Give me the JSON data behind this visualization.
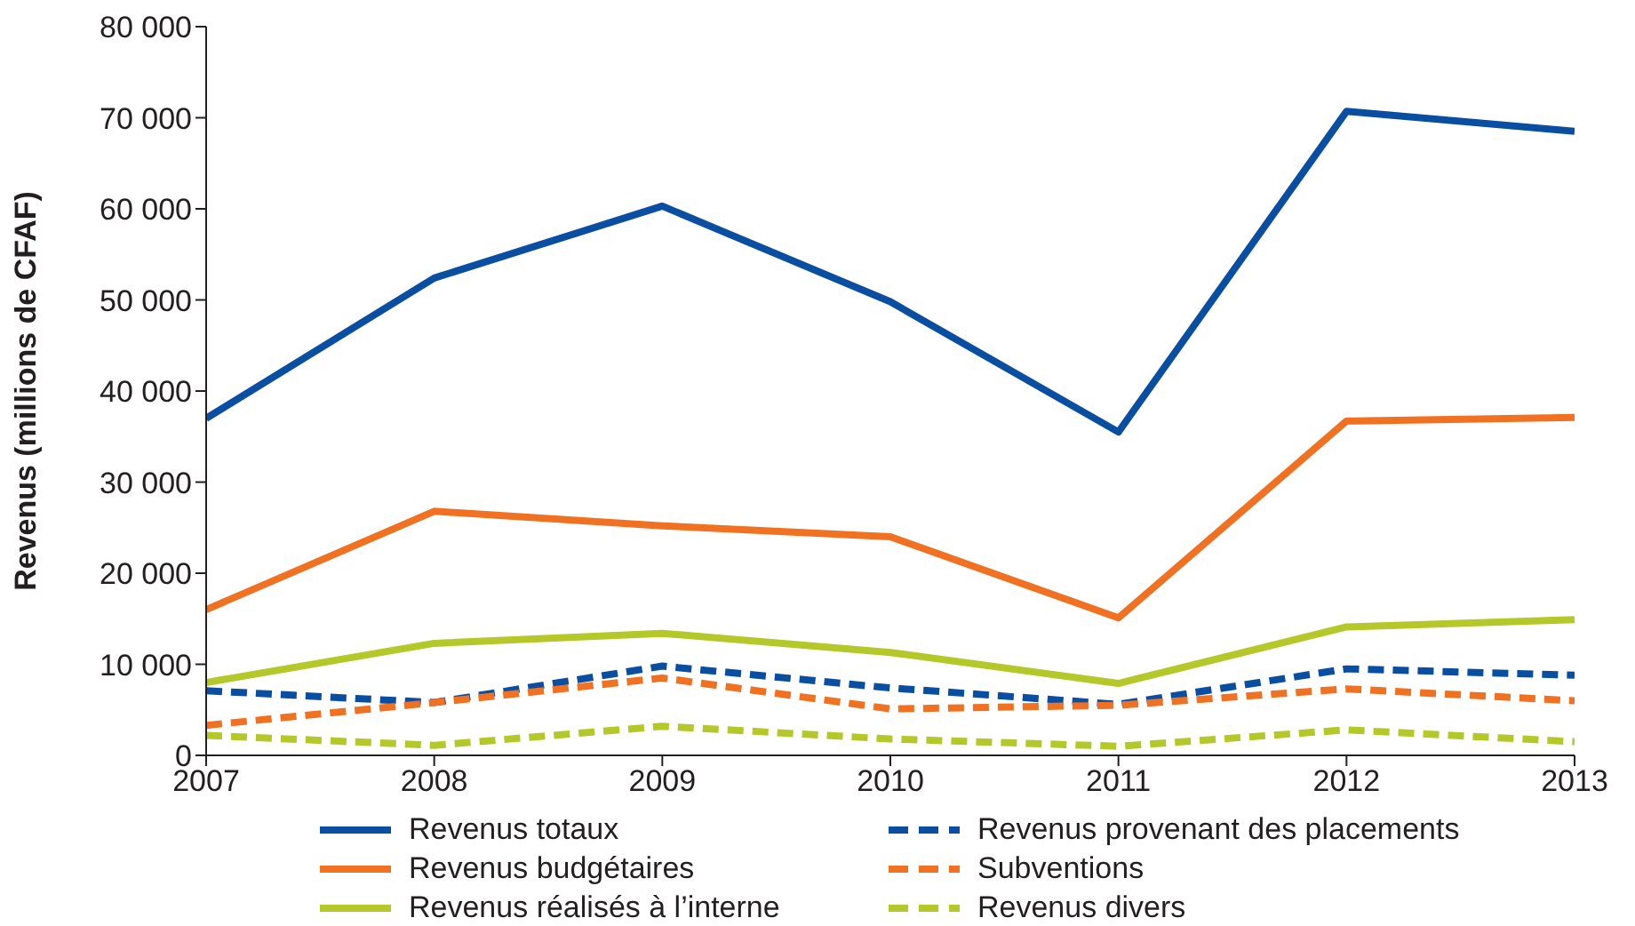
{
  "chart_data": {
    "type": "line",
    "ylabel": "Revenus  (millions de CFAF)",
    "x": [
      2007,
      2008,
      2009,
      2010,
      2011,
      2012,
      2013
    ],
    "xlim": [
      2007,
      2013
    ],
    "xticks": [
      2007,
      2008,
      2009,
      2010,
      2011,
      2012,
      2013
    ],
    "ylim": [
      0,
      80000
    ],
    "yticks": [
      {
        "value": 0,
        "label": "0"
      },
      {
        "value": 10000,
        "label": "10 000"
      },
      {
        "value": 20000,
        "label": "20 000"
      },
      {
        "value": 30000,
        "label": "30 000"
      },
      {
        "value": 40000,
        "label": "40 000"
      },
      {
        "value": 50000,
        "label": "50 000"
      },
      {
        "value": 60000,
        "label": "60 000"
      },
      {
        "value": 70000,
        "label": "70 000"
      },
      {
        "value": 80000,
        "label": "80 000"
      }
    ],
    "grid": false,
    "legend": "bottom",
    "marker": "none",
    "series": [
      {
        "name": "Revenus totaux",
        "color": "#0a4ea2",
        "line_style": "solid",
        "values": [
          37000,
          52400,
          60300,
          49800,
          35500,
          70700,
          68500
        ]
      },
      {
        "name": "Revenus provenant des placements",
        "color": "#0a4ea2",
        "line_style": "dashed",
        "values": [
          7100,
          5800,
          9800,
          7400,
          5600,
          9500,
          8800
        ]
      },
      {
        "name": "Revenus budgétaires",
        "color": "#f07122",
        "line_style": "solid",
        "values": [
          16000,
          26800,
          25200,
          24000,
          15100,
          36700,
          37100
        ]
      },
      {
        "name": "Subventions",
        "color": "#f07122",
        "line_style": "dashed",
        "values": [
          3300,
          5800,
          8500,
          5100,
          5500,
          7300,
          6000
        ]
      },
      {
        "name": "Revenus réalisés à l’interne",
        "color": "#b5c82a",
        "line_style": "solid",
        "values": [
          8000,
          12300,
          13400,
          11300,
          7900,
          14100,
          14900
        ]
      },
      {
        "name": "Revenus divers",
        "color": "#b5c82a",
        "line_style": "dashed",
        "values": [
          2200,
          1100,
          3200,
          1800,
          1000,
          2800,
          1500
        ]
      }
    ]
  }
}
